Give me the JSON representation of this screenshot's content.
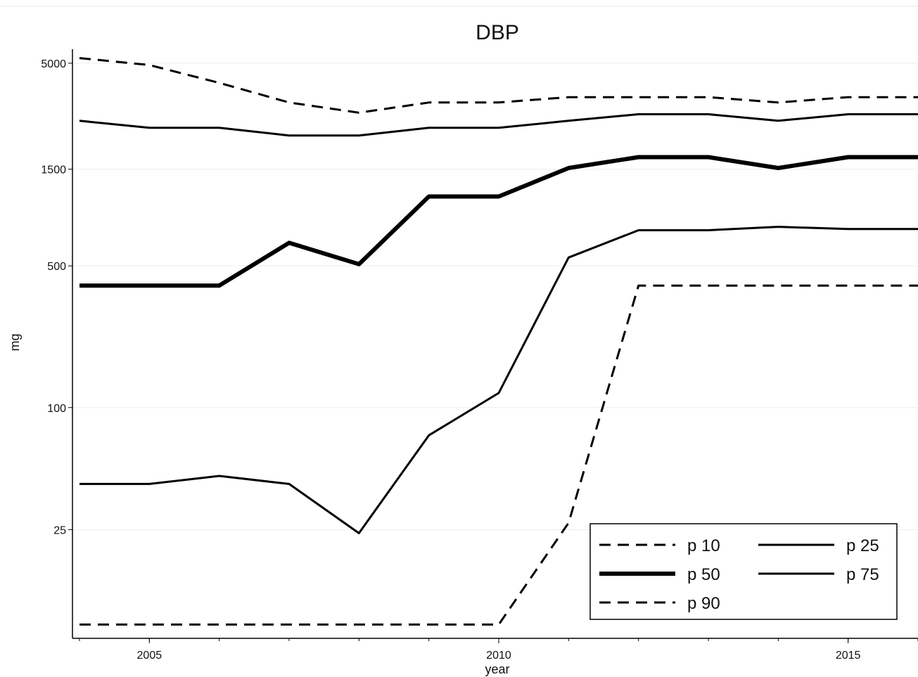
{
  "chart_data": {
    "type": "line",
    "title": "DBP",
    "xlabel": "year",
    "ylabel": "mg",
    "y_scale": "log",
    "ylim": [
      8,
      5500
    ],
    "xlim": [
      2004,
      2016
    ],
    "x_ticks": [
      2005,
      2010,
      2015
    ],
    "y_ticks": [
      25,
      100,
      500,
      1500,
      5000
    ],
    "grid": "horizontal",
    "legend_position": "bottom-right",
    "x": [
      2004,
      2005,
      2006,
      2007,
      2008,
      2009,
      2010,
      2011,
      2012,
      2013,
      2014,
      2015,
      2016
    ],
    "series": [
      {
        "name": "p 10",
        "style": "dashed",
        "weight": "normal",
        "values": [
          8.5,
          8.5,
          8.5,
          8.5,
          8.5,
          8.5,
          8.5,
          27,
          400,
          400,
          400,
          400,
          400
        ]
      },
      {
        "name": "p 25",
        "style": "solid",
        "weight": "normal",
        "values": [
          42,
          42,
          46,
          42,
          24,
          73,
          118,
          550,
          750,
          750,
          780,
          760,
          760
        ]
      },
      {
        "name": "p 50",
        "style": "solid",
        "weight": "bold",
        "values": [
          400,
          400,
          400,
          650,
          510,
          1100,
          1100,
          1520,
          1720,
          1720,
          1520,
          1720,
          1720
        ]
      },
      {
        "name": "p 75",
        "style": "solid",
        "weight": "normal",
        "values": [
          2600,
          2400,
          2400,
          2200,
          2200,
          2400,
          2400,
          2600,
          2800,
          2800,
          2600,
          2800,
          2800
        ]
      },
      {
        "name": "p 90",
        "style": "dashed",
        "weight": "normal",
        "values": [
          5300,
          4900,
          4000,
          3200,
          2850,
          3200,
          3200,
          3400,
          3400,
          3400,
          3200,
          3400,
          3400
        ]
      }
    ],
    "colors": {
      "line": "#000000",
      "grid": "#eeeeee",
      "axis": "#000000"
    }
  }
}
